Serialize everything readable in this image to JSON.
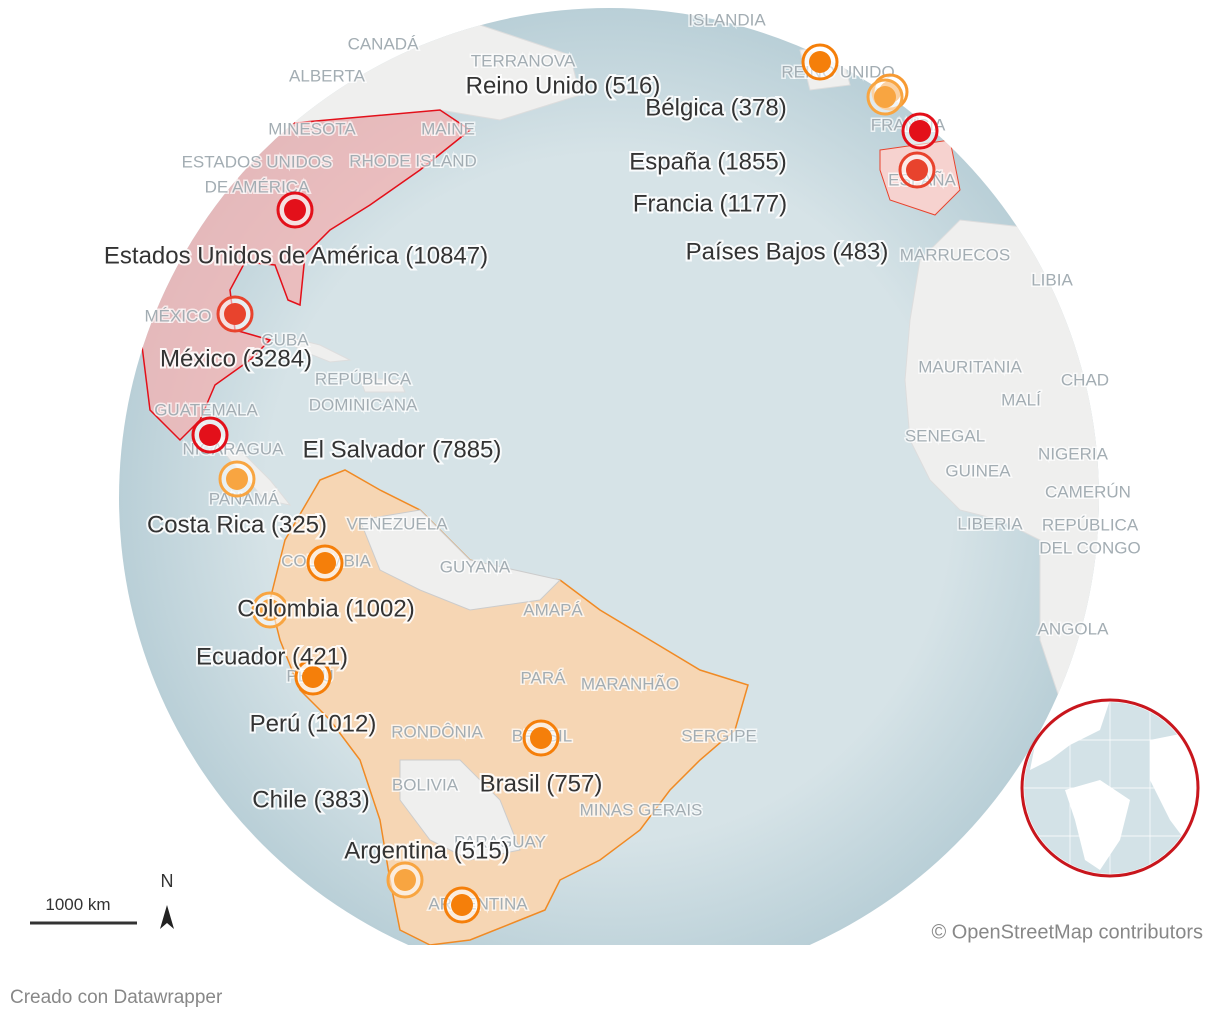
{
  "markers": [
    {
      "label": "Estados Unidos de América (10847)",
      "value": 10847,
      "color": "#e3101a"
    },
    {
      "label": "El Salvador (7885)",
      "value": 7885,
      "color": "#e3101a"
    },
    {
      "label": "México (3284)",
      "value": 3284,
      "color": "#e8432d"
    },
    {
      "label": "España (1855)",
      "value": 1855,
      "color": "#e8432d"
    },
    {
      "label": "Francia (1177)",
      "value": 1177,
      "color": "#e3101a"
    },
    {
      "label": "Perú (1012)",
      "value": 1012,
      "color": "#f57f0a"
    },
    {
      "label": "Colombia (1002)",
      "value": 1002,
      "color": "#f57f0a"
    },
    {
      "label": "Brasil (757)",
      "value": 757,
      "color": "#f57f0a"
    },
    {
      "label": "Reino Unido (516)",
      "value": 516,
      "color": "#f57f0a"
    },
    {
      "label": "Argentina (515)",
      "value": 515,
      "color": "#f57f0a"
    },
    {
      "label": "Países Bajos (483)",
      "value": 483,
      "color": "#f79a32"
    },
    {
      "label": "Ecuador (421)",
      "value": 421,
      "color": "#f8a541"
    },
    {
      "label": "Chile (383)",
      "value": 383,
      "color": "#f8a541"
    },
    {
      "label": "Bélgica (378)",
      "value": 378,
      "color": "#f8a541"
    },
    {
      "label": "Costa Rica (325)",
      "value": 325,
      "color": "#f8a541"
    }
  ],
  "place_labels": [
    "ISLANDIA",
    "CANADÁ",
    "TERRANOVA",
    "ALBERTA",
    "REINO UNIDO",
    "MINESOTA",
    "MAINE",
    "ESTADOS UNIDOS",
    "DE AMÉRICA",
    "RHODE ISLAND",
    "FRANCIA",
    "ESPAÑA",
    "MARRUECOS",
    "LIBIA",
    "MÉXICO",
    "CUBA",
    "REPÚBLICA",
    "DOMINICANA",
    "MAURITANIA",
    "CHAD",
    "MALÍ",
    "GUATEMALA",
    "NICARAGUA",
    "SENEGAL",
    "NIGERIA",
    "GUINEA",
    "PANAMÁ",
    "CAMERÚN",
    "VENEZUELA",
    "LIBERIA",
    "REPÚBLICA",
    "DEL CONGO",
    "COLOMBIA",
    "GUYANA",
    "AMAPÁ",
    "ANGOLA",
    "PERÚ",
    "PARÁ",
    "MARANHÃO",
    "RONDÔNIA",
    "BRASIL",
    "SERGIPE",
    "BOLIVIA",
    "MINAS GERAIS",
    "PARAGUAY",
    "ARGENTINA"
  ],
  "scale": "1000 km",
  "north": "N",
  "attribution": "© OpenStreetMap contributors",
  "footer": "Creado con Datawrapper"
}
